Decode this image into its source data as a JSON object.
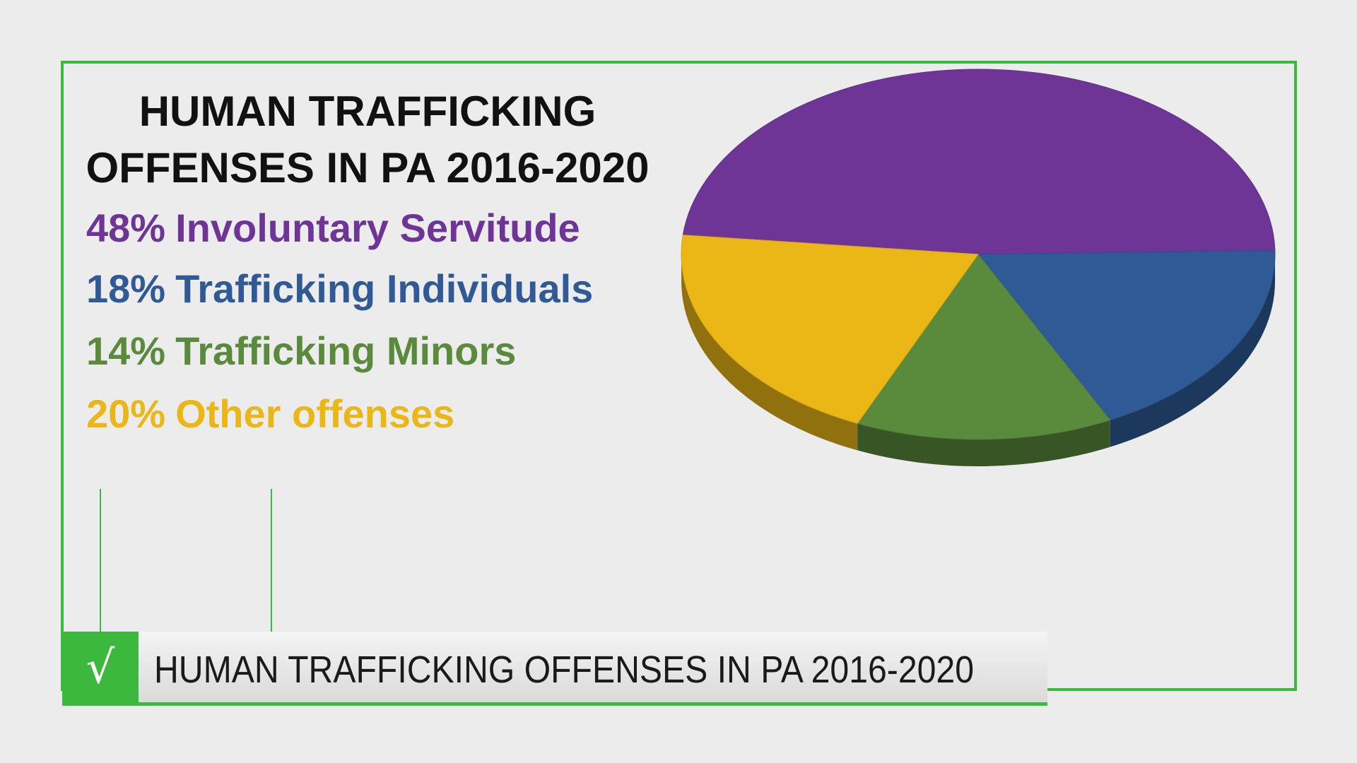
{
  "chart_data": {
    "type": "pie3d",
    "title": "HUMAN TRAFFICKING\nOFFENSES IN PA 2016-2020",
    "categories": [
      "Involuntary Servitude",
      "Trafficking Individuals",
      "Trafficking Minors",
      "Other offenses"
    ],
    "values": [
      48,
      18,
      14,
      20
    ],
    "value_labels": [
      "48%",
      "18%",
      "14%",
      "20%"
    ],
    "colors": [
      "#6e3597",
      "#2f5a96",
      "#5a8a3c",
      "#eab717"
    ]
  },
  "banner": {
    "text": "HUMAN TRAFFICKING OFFENSES IN PA 2016-2020"
  }
}
